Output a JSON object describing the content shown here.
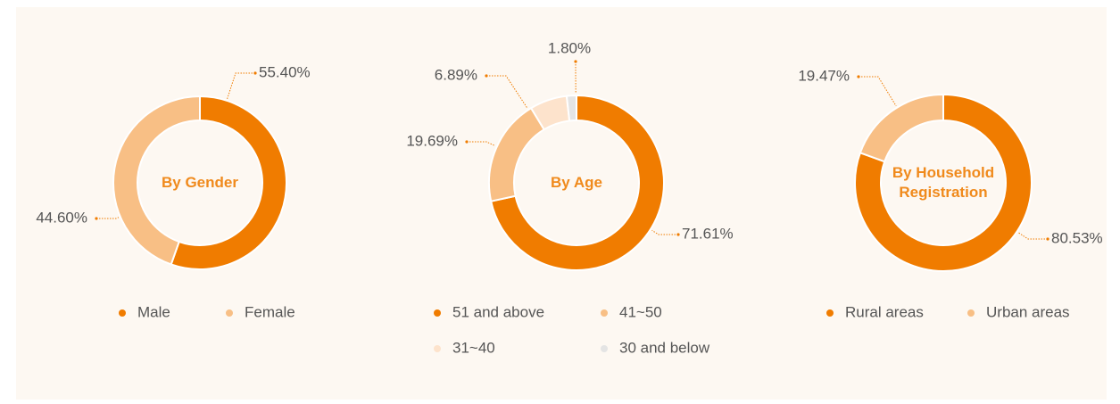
{
  "chart_data": [
    {
      "type": "pie",
      "title": "By Gender",
      "categories": [
        "Male",
        "Female"
      ],
      "values": [
        55.4,
        44.6
      ],
      "value_labels": [
        "55.40%",
        "44.60%"
      ],
      "colors": [
        "#f07c00",
        "#f8bf85"
      ]
    },
    {
      "type": "pie",
      "title": "By Age",
      "categories": [
        "51 and above",
        "41~50",
        "31~40",
        "30 and below"
      ],
      "values": [
        71.61,
        19.69,
        6.89,
        1.8
      ],
      "value_labels": [
        "71.61%",
        "19.69%",
        "6.89%",
        "1.80%"
      ],
      "colors": [
        "#f07c00",
        "#f8bf85",
        "#fde3cc",
        "#e4e4e4"
      ]
    },
    {
      "type": "pie",
      "title": "By Household Registration",
      "categories": [
        "Rural areas",
        "Urban areas"
      ],
      "values": [
        80.53,
        19.47
      ],
      "value_labels": [
        "80.53%",
        "19.47%"
      ],
      "colors": [
        "#f07c00",
        "#f8bf85"
      ]
    }
  ]
}
